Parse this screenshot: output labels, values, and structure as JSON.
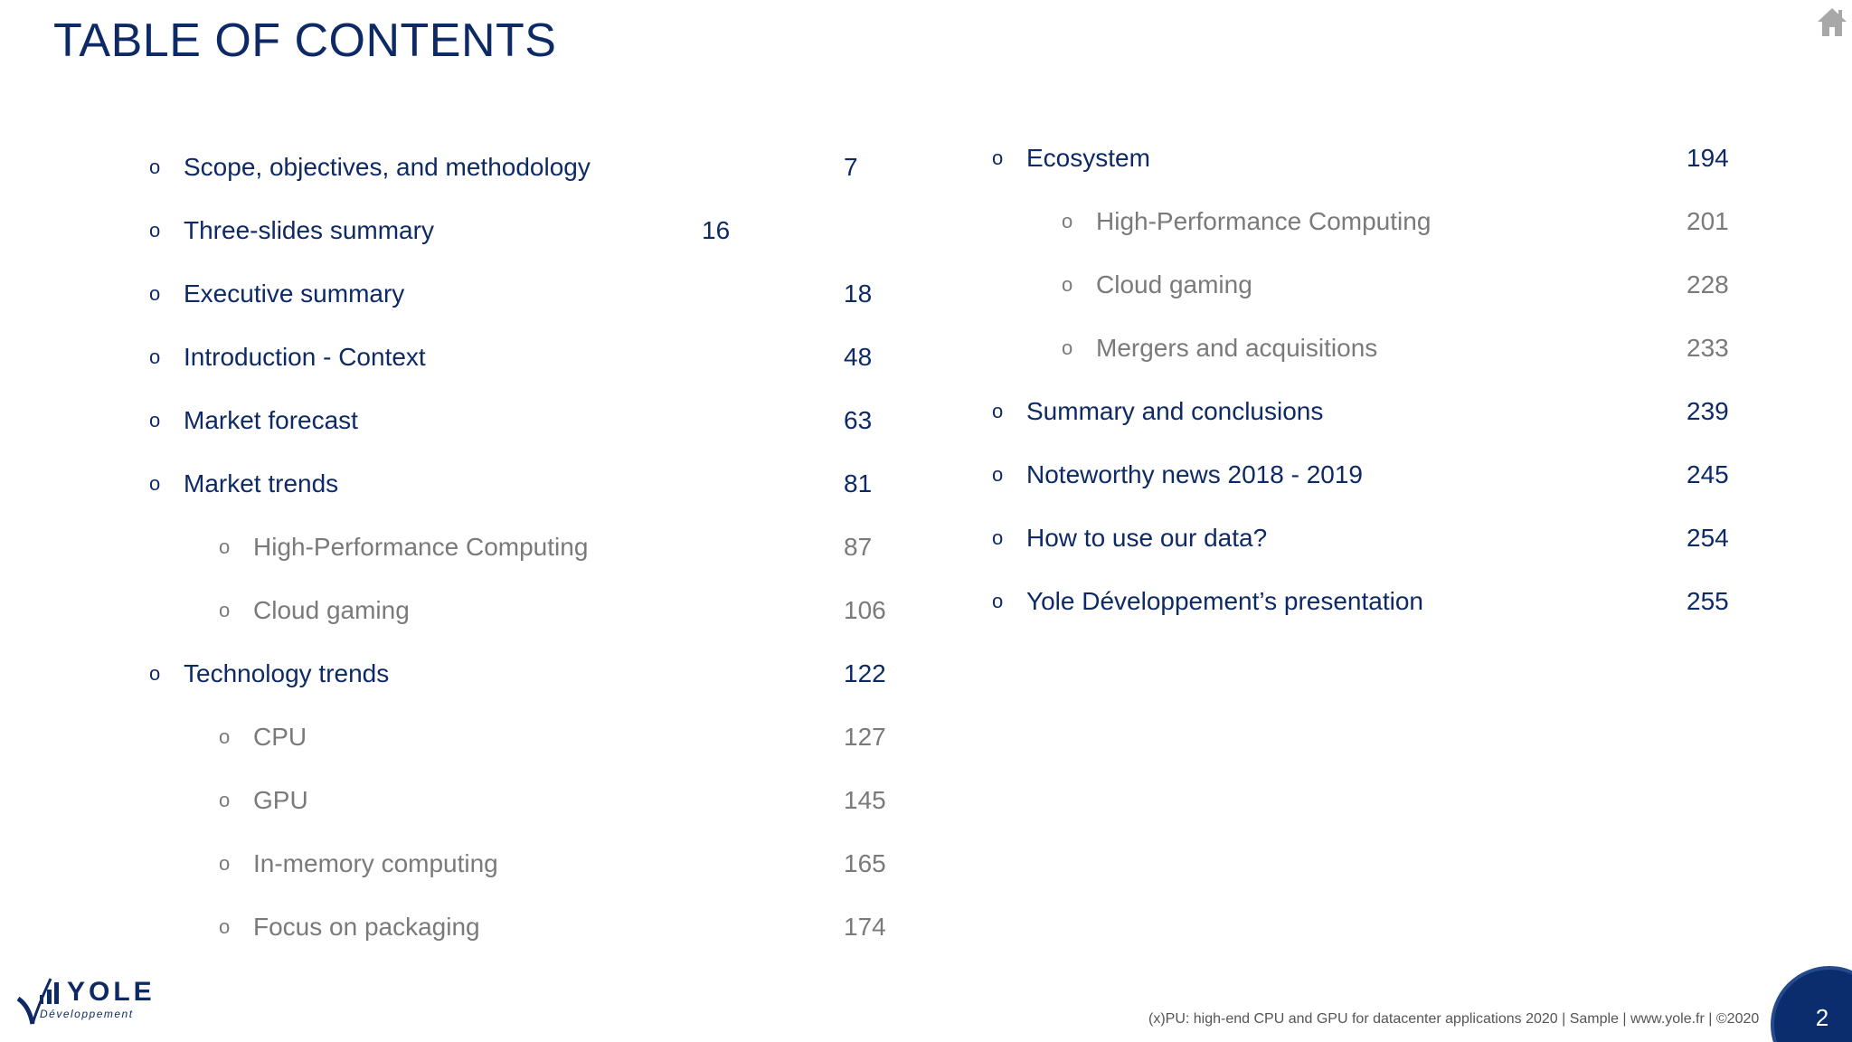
{
  "title": "TABLE OF CONTENTS",
  "icons": {
    "home": "home-icon"
  },
  "colors": {
    "primary": "#0e2a66",
    "sub": "#7a7a7a",
    "badge": "#0b2d6e"
  },
  "toc_left": [
    {
      "label": "Scope, objectives, and methodology",
      "page": "7",
      "level": "main"
    },
    {
      "label": "Three-slides summary",
      "page": "16",
      "level": "main"
    },
    {
      "label": "Executive summary",
      "page": "18",
      "level": "main"
    },
    {
      "label": "Introduction - Context",
      "page": "48",
      "level": "main"
    },
    {
      "label": "Market forecast",
      "page": "63",
      "level": "main"
    },
    {
      "label": "Market trends",
      "page": "81",
      "level": "main"
    },
    {
      "label": "High-Performance Computing",
      "page": "87",
      "level": "sub"
    },
    {
      "label": "Cloud gaming",
      "page": "106",
      "level": "sub"
    },
    {
      "label": "Technology trends",
      "page": "122",
      "level": "main"
    },
    {
      "label": "CPU",
      "page": "127",
      "level": "sub"
    },
    {
      "label": "GPU",
      "page": "145",
      "level": "sub"
    },
    {
      "label": "In-memory computing",
      "page": "165",
      "level": "sub"
    },
    {
      "label": "Focus on packaging",
      "page": "174",
      "level": "sub"
    }
  ],
  "toc_right": [
    {
      "label": "Ecosystem",
      "page": "194",
      "level": "main"
    },
    {
      "label": "High-Performance Computing",
      "page": "201",
      "level": "sub"
    },
    {
      "label": "Cloud gaming",
      "page": "228",
      "level": "sub"
    },
    {
      "label": "Mergers and acquisitions",
      "page": "233",
      "level": "sub"
    },
    {
      "label": "Summary and conclusions",
      "page": "239",
      "level": "main"
    },
    {
      "label": "Noteworthy news 2018 - 2019",
      "page": "245",
      "level": "main"
    },
    {
      "label": "How to use our data?",
      "page": "254",
      "level": "main"
    },
    {
      "label": "Yole Développement’s presentation",
      "page": "255",
      "level": "main"
    }
  ],
  "logo": {
    "name": "YOLE",
    "sub": "Développement"
  },
  "footer": "(x)PU: high-end CPU and GPU for datacenter applications 2020 | Sample | www.yole.fr | ©2020",
  "page_number": "2"
}
